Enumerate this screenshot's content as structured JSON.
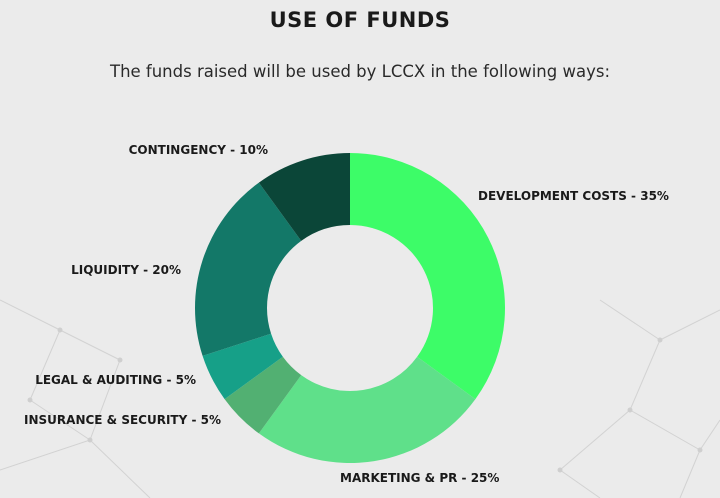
{
  "header": {
    "title": "USE OF FUNDS",
    "subtitle": "The funds raised will be used by LCCX in the following ways:"
  },
  "chart_data": {
    "type": "pie",
    "donut": true,
    "categories": [
      "DEVELOPMENT COSTS",
      "MARKETING & PR",
      "INSURANCE & SECURITY",
      "LEGAL & AUDITING",
      "LIQUIDITY",
      "CONTINGENCY"
    ],
    "values": [
      35,
      25,
      5,
      5,
      20,
      10
    ],
    "labels": [
      "DEVELOPMENT COSTS - 35%",
      "MARKETING & PR - 25%",
      "INSURANCE & SECURITY - 5%",
      "LEGAL & AUDITING - 5%",
      "LIQUIDITY - 20%",
      "CONTINGENCY - 10%"
    ],
    "colors": [
      "#3dfc68",
      "#5fe08a",
      "#52b072",
      "#16a088",
      "#137868",
      "#0b4638"
    ],
    "title": "USE OF FUNDS"
  }
}
